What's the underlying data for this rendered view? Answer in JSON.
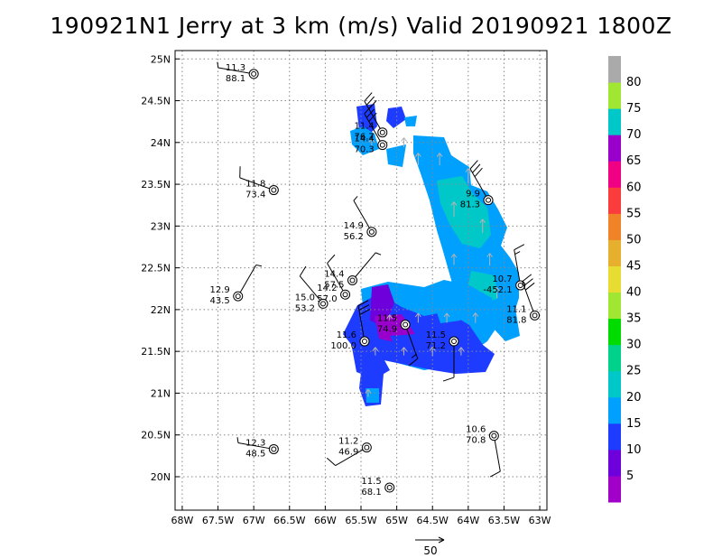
{
  "title": "190921N1 Jerry at 3 km (m/s) Valid 20190921 1800Z",
  "map": {
    "lon_range": [
      -68.1,
      -62.9
    ],
    "lat_range": [
      19.6,
      25.1
    ],
    "x_ticks": [
      {
        "lon": -68,
        "label": "68W"
      },
      {
        "lon": -67.5,
        "label": "67.5W"
      },
      {
        "lon": -67,
        "label": "67W"
      },
      {
        "lon": -66.5,
        "label": "66.5W"
      },
      {
        "lon": -66,
        "label": "66W"
      },
      {
        "lon": -65.5,
        "label": "65.5W"
      },
      {
        "lon": -65,
        "label": "65W"
      },
      {
        "lon": -64.5,
        "label": "64.5W"
      },
      {
        "lon": -64,
        "label": "64W"
      },
      {
        "lon": -63.5,
        "label": "63.5W"
      },
      {
        "lon": -63,
        "label": "63W"
      }
    ],
    "y_ticks": [
      {
        "lat": 20,
        "label": "20N"
      },
      {
        "lat": 20.5,
        "label": "20.5N"
      },
      {
        "lat": 21,
        "label": "21N"
      },
      {
        "lat": 21.5,
        "label": "21.5N"
      },
      {
        "lat": 22,
        "label": "22N"
      },
      {
        "lat": 22.5,
        "label": "22.5N"
      },
      {
        "lat": 23,
        "label": "23N"
      },
      {
        "lat": 23.5,
        "label": "23.5N"
      },
      {
        "lat": 24,
        "label": "24N"
      },
      {
        "lat": 24.5,
        "label": "24.5N"
      },
      {
        "lat": 25,
        "label": "25N"
      }
    ],
    "grid": "dotted"
  },
  "colorbar": {
    "levels": [
      "5",
      "10",
      "15",
      "20",
      "25",
      "30",
      "35",
      "40",
      "45",
      "50",
      "55",
      "60",
      "65",
      "70",
      "75",
      "80"
    ],
    "colors": [
      "#a000c8",
      "#6e00dc",
      "#1e3cff",
      "#00a0ff",
      "#00c8c8",
      "#00d28c",
      "#00dc00",
      "#a0e632",
      "#e6dc32",
      "#e6af2d",
      "#f08228",
      "#fa3c3c",
      "#f00082",
      "#9900cc",
      "#00c8c8",
      "#a0e632",
      "#aaaaaa"
    ]
  },
  "reference_vector": {
    "value": "50"
  },
  "stations": [
    {
      "lon": -67.0,
      "lat": 24.82,
      "top": "11.3",
      "bottom": "88.1",
      "wdir": 280,
      "wspd": 5
    },
    {
      "lon": -66.72,
      "lat": 23.43,
      "top": "11.8",
      "bottom": "73.4",
      "wdir": 290,
      "wspd": 10
    },
    {
      "lon": -67.22,
      "lat": 22.16,
      "top": "12.9",
      "bottom": "43.5",
      "wdir": 30,
      "wspd": 5
    },
    {
      "lon": -65.35,
      "lat": 22.93,
      "top": "14.9",
      "bottom": "56.2",
      "wdir": 330,
      "wspd": 5
    },
    {
      "lon": -65.62,
      "lat": 22.35,
      "top": "14.4",
      "bottom": "57.5",
      "wdir": 40,
      "wspd": 5
    },
    {
      "lon": -65.72,
      "lat": 22.18,
      "top": "14.2",
      "bottom": "57.0",
      "wdir": 330,
      "wspd": 10
    },
    {
      "lon": -66.03,
      "lat": 22.07,
      "top": "15.0",
      "bottom": "53.2",
      "wdir": 320,
      "wspd": 10
    },
    {
      "lon": -65.2,
      "lat": 24.12,
      "top": "11.4",
      "bottom": "76.7",
      "wdir": 330,
      "wspd": 30
    },
    {
      "lon": -65.2,
      "lat": 23.97,
      "top": "14.4",
      "bottom": "70.3",
      "wdir": 330,
      "wspd": 30
    },
    {
      "lon": -63.72,
      "lat": 23.31,
      "top": "9.9",
      "bottom": "81.3",
      "wdir": 330,
      "wspd": 30
    },
    {
      "lon": -63.27,
      "lat": 22.29,
      "top": "10.7",
      "bottom": "-452.1",
      "wdir": 350,
      "wspd": 15
    },
    {
      "lon": -63.07,
      "lat": 21.93,
      "top": "11.1",
      "bottom": "81.8",
      "wdir": 340,
      "wspd": 30
    },
    {
      "lon": -64.88,
      "lat": 21.82,
      "top": "11.5",
      "bottom": "74.9",
      "wdir": 160,
      "wspd": 15
    },
    {
      "lon": -65.45,
      "lat": 21.62,
      "top": "11.6",
      "bottom": "100.0",
      "wdir": 350,
      "wspd": 30
    },
    {
      "lon": -64.2,
      "lat": 21.62,
      "top": "11.5",
      "bottom": "71.2",
      "wdir": 180,
      "wspd": 10
    },
    {
      "lon": -66.72,
      "lat": 20.33,
      "top": "12.3",
      "bottom": "48.5",
      "wdir": 280,
      "wspd": 5
    },
    {
      "lon": -65.42,
      "lat": 20.35,
      "top": "11.2",
      "bottom": "46.9",
      "wdir": 240,
      "wspd": 10
    },
    {
      "lon": -63.64,
      "lat": 20.49,
      "top": "10.6",
      "bottom": "70.8",
      "wdir": 170,
      "wspd": 10
    },
    {
      "lon": -65.1,
      "lat": 19.87,
      "top": "11.5",
      "bottom": "68.1",
      "wdir": 0,
      "wspd": 0
    }
  ],
  "wind_field": [
    {
      "lon": -65.35,
      "lat": 24.0,
      "v": 12,
      "c": "#1e3cff"
    },
    {
      "lon": -64.9,
      "lat": 24.0,
      "v": 14,
      "c": "#1e3cff"
    },
    {
      "lon": -64.7,
      "lat": 23.8,
      "v": 18,
      "c": "#00a0ff"
    },
    {
      "lon": -64.4,
      "lat": 23.8,
      "v": 18,
      "c": "#00a0ff"
    },
    {
      "lon": -64.0,
      "lat": 23.6,
      "v": 22,
      "c": "#00c8c8"
    },
    {
      "lon": -64.2,
      "lat": 23.2,
      "v": 22,
      "c": "#00c8c8"
    },
    {
      "lon": -63.8,
      "lat": 23.0,
      "v": 20,
      "c": "#00c8c8"
    },
    {
      "lon": -63.7,
      "lat": 22.6,
      "v": 18,
      "c": "#00a0ff"
    },
    {
      "lon": -64.2,
      "lat": 22.6,
      "v": 16,
      "c": "#00a0ff"
    },
    {
      "lon": -63.6,
      "lat": 22.2,
      "v": 16,
      "c": "#00a0ff"
    },
    {
      "lon": -63.9,
      "lat": 21.9,
      "v": 15,
      "c": "#00a0ff"
    },
    {
      "lon": -64.3,
      "lat": 21.9,
      "v": 14,
      "c": "#1e3cff"
    },
    {
      "lon": -64.7,
      "lat": 21.9,
      "v": 14,
      "c": "#1e3cff"
    },
    {
      "lon": -65.1,
      "lat": 21.9,
      "v": 9,
      "c": "#6e00dc"
    },
    {
      "lon": -65.3,
      "lat": 21.5,
      "v": 12,
      "c": "#1e3cff"
    },
    {
      "lon": -64.9,
      "lat": 21.5,
      "v": 12,
      "c": "#1e3cff"
    },
    {
      "lon": -64.5,
      "lat": 21.5,
      "v": 13,
      "c": "#1e3cff"
    },
    {
      "lon": -64.1,
      "lat": 21.5,
      "v": 12,
      "c": "#1e3cff"
    },
    {
      "lon": -65.4,
      "lat": 21.0,
      "v": 11,
      "c": "#1e3cff"
    }
  ]
}
